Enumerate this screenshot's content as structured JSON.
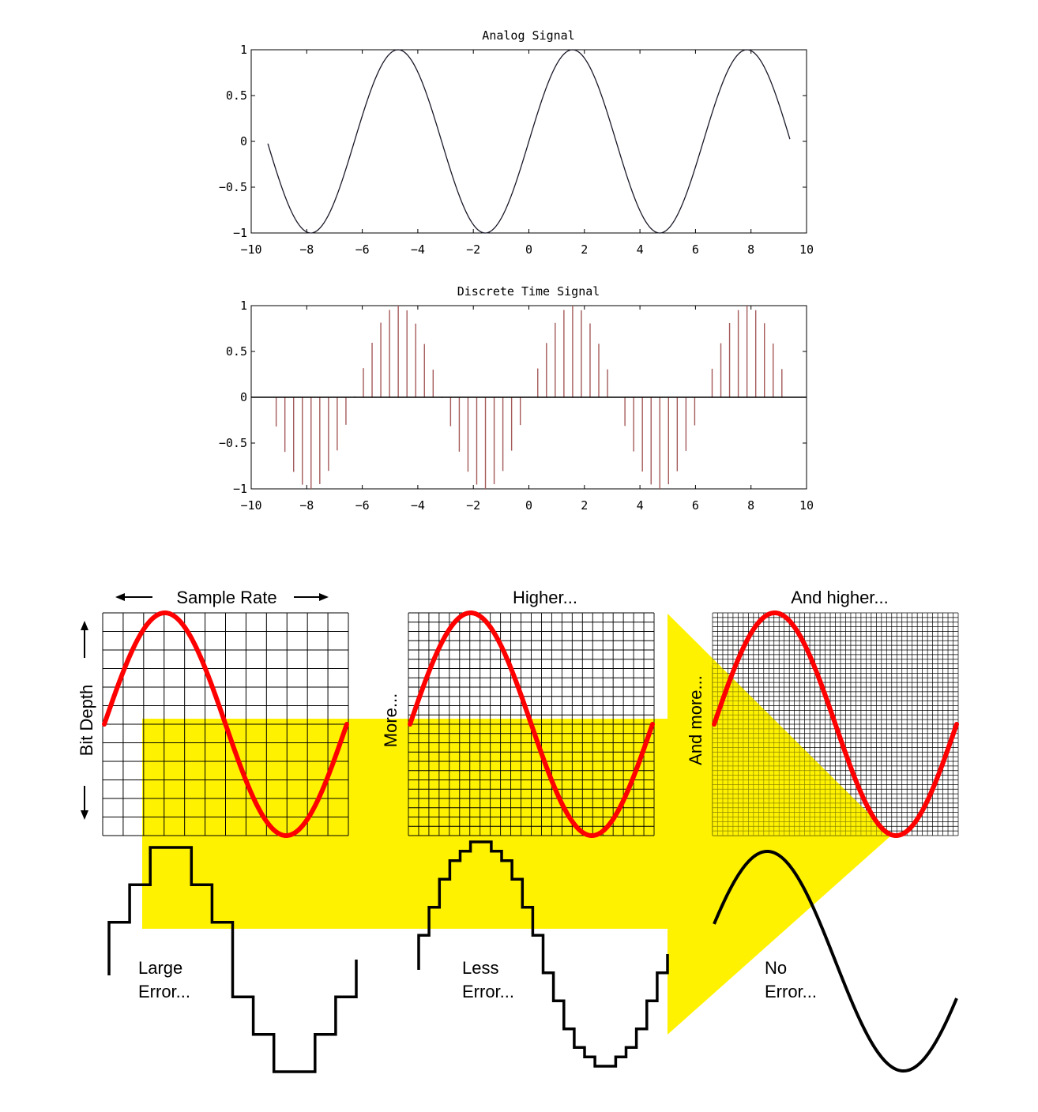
{
  "colors": {
    "highlight": "#fff200",
    "wave": "#ff0000",
    "stem": "#a55a5a",
    "ink": "#000000"
  },
  "chart_data": [
    {
      "type": "line",
      "title": "Analog Signal",
      "function": "sin(x)",
      "x_range": [
        -9.4,
        9.4
      ],
      "xlim": [
        -10,
        10
      ],
      "ylim": [
        -1,
        1
      ],
      "xticks": [
        "−10",
        "−8",
        "−6",
        "−4",
        "−2",
        "0",
        "2",
        "4",
        "6",
        "8",
        "10"
      ],
      "yticks": [
        "1",
        "0.5",
        "0",
        "−0.5",
        "−1"
      ]
    },
    {
      "type": "stem",
      "title": "Discrete Time Signal",
      "function": "sin(x)",
      "sample_start": -9.1,
      "sample_step": 0.314,
      "sample_count": 59,
      "xlim": [
        -10,
        10
      ],
      "ylim": [
        -1,
        1
      ],
      "xticks": [
        "−10",
        "−8",
        "−6",
        "−4",
        "−2",
        "0",
        "2",
        "4",
        "6",
        "8",
        "10"
      ],
      "yticks": [
        "1",
        "0.5",
        "0",
        "−0.5",
        "−1"
      ]
    }
  ],
  "diagram": {
    "panels": [
      {
        "title": "Sample Rate",
        "side_label": "Bit Depth",
        "grid_cols": 12,
        "grid_rows": 12,
        "steps": 12,
        "error_line1": "Large",
        "error_line2": "Error..."
      },
      {
        "title": "Higher...",
        "side_label": "More...",
        "grid_cols": 24,
        "grid_rows": 24,
        "steps": 24,
        "error_line1": "Less",
        "error_line2": "Error..."
      },
      {
        "title": "And higher...",
        "side_label": "And more...",
        "grid_cols": 48,
        "grid_rows": 48,
        "steps": 0,
        "error_line1": "No",
        "error_line2": "Error..."
      }
    ]
  }
}
